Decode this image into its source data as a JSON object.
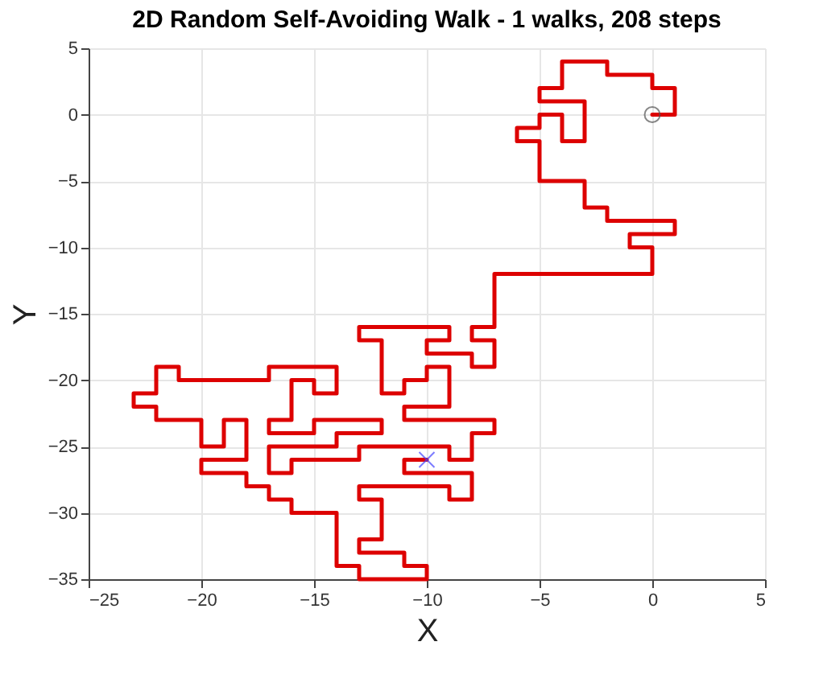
{
  "chart_data": {
    "type": "line",
    "title": "2D Random Self-Avoiding Walk - 1 walks, 208 steps",
    "xlabel": "X",
    "ylabel": "Y",
    "xlim": [
      -25,
      5
    ],
    "ylim": [
      -35,
      5
    ],
    "xticks": [
      -25,
      -20,
      -15,
      -10,
      -5,
      0,
      5
    ],
    "yticks": [
      -35,
      -30,
      -25,
      -20,
      -15,
      -10,
      -5,
      0,
      5
    ],
    "grid": true,
    "legend": false,
    "series": [
      {
        "type": "line",
        "color": "#dd0000",
        "marker": "none",
        "line_style": "solid",
        "x": [
          0,
          1,
          1,
          0,
          0,
          -2,
          -2,
          -4,
          -4,
          -5,
          -5,
          -3,
          -3,
          -4,
          -4,
          -5,
          -5,
          -6,
          -6,
          -5,
          -5,
          -3,
          -3,
          -2,
          -2,
          1,
          1,
          -1,
          -1,
          0,
          0,
          -7,
          -7,
          -8,
          -8,
          -7,
          -7,
          -8,
          -8,
          -10,
          -10,
          -9,
          -9,
          -13,
          -13,
          -12,
          -12,
          -11,
          -11,
          -10,
          -10,
          -9,
          -9,
          -11,
          -11,
          -7,
          -7,
          -8,
          -8,
          -9,
          -9,
          -13,
          -13,
          -16,
          -16,
          -17,
          -17,
          -14,
          -14,
          -12,
          -12,
          -15,
          -15,
          -17,
          -17,
          -16,
          -16,
          -15,
          -15,
          -14,
          -14,
          -17,
          -17,
          -21,
          -21,
          -22,
          -22,
          -23,
          -23,
          -22,
          -22,
          -20,
          -20,
          -19,
          -19,
          -18,
          -18,
          -20,
          -20,
          -18,
          -18,
          -17,
          -17,
          -16,
          -16,
          -14,
          -14,
          -13,
          -13,
          -10,
          -10,
          -11,
          -11,
          -13,
          -13,
          -12,
          -12,
          -13,
          -13,
          -9,
          -9,
          -8,
          -8,
          -11,
          -11,
          -10
        ],
        "values": [
          0,
          0,
          2,
          2,
          3,
          3,
          4,
          4,
          2,
          2,
          1,
          1,
          -2,
          -2,
          0,
          0,
          -1,
          -1,
          -2,
          -2,
          -5,
          -5,
          -7,
          -7,
          -8,
          -8,
          -9,
          -9,
          -10,
          -10,
          -12,
          -12,
          -16,
          -16,
          -17,
          -17,
          -19,
          -19,
          -18,
          -18,
          -17,
          -17,
          -16,
          -16,
          -17,
          -17,
          -21,
          -21,
          -20,
          -20,
          -19,
          -19,
          -22,
          -22,
          -23,
          -23,
          -24,
          -24,
          -26,
          -26,
          -25,
          -25,
          -26,
          -26,
          -27,
          -27,
          -25,
          -25,
          -24,
          -24,
          -23,
          -23,
          -24,
          -24,
          -23,
          -23,
          -20,
          -20,
          -21,
          -21,
          -19,
          -19,
          -20,
          -20,
          -19,
          -19,
          -21,
          -21,
          -22,
          -22,
          -23,
          -23,
          -25,
          -25,
          -23,
          -23,
          -26,
          -26,
          -27,
          -27,
          -28,
          -28,
          -29,
          -29,
          -30,
          -30,
          -34,
          -34,
          -35,
          -35,
          -34,
          -34,
          -33,
          -33,
          -32,
          -32,
          -29,
          -29,
          -28,
          -28,
          -29,
          -29,
          -27,
          -27,
          -26,
          -26
        ]
      },
      {
        "type": "scatter",
        "color": "#555555",
        "marker": "circle",
        "x": [
          0
        ],
        "values": [
          0
        ]
      },
      {
        "type": "scatter",
        "color": "#4444ff",
        "marker": "cross",
        "x": [
          -10
        ],
        "values": [
          -26
        ]
      }
    ]
  }
}
